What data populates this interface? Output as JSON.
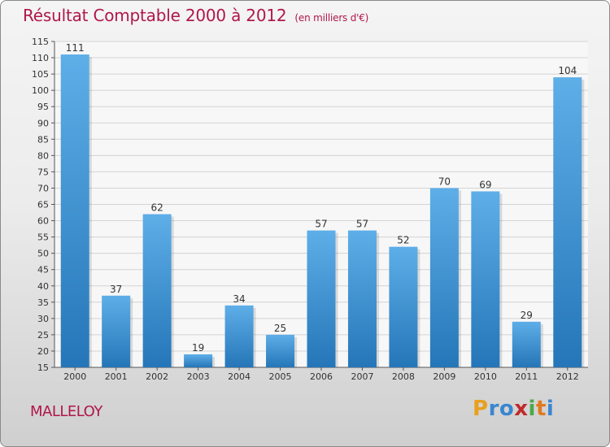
{
  "header": {
    "title": "Résultat Comptable 2000 à 2012",
    "subtitle": "(en milliers d'€)"
  },
  "commune": "MALLELOY",
  "brand": "Proxiti",
  "colors": {
    "title": "#b0174a",
    "bar_top": "#5eaee8",
    "bar_bottom": "#2576b8"
  },
  "chart_data": {
    "type": "bar",
    "title": "Résultat Comptable 2000 à 2012",
    "subtitle": "(en milliers d'€)",
    "categories": [
      "2000",
      "2001",
      "2002",
      "2003",
      "2004",
      "2005",
      "2006",
      "2007",
      "2008",
      "2009",
      "2010",
      "2011",
      "2012"
    ],
    "values": [
      111,
      37,
      62,
      19,
      34,
      25,
      57,
      57,
      52,
      70,
      69,
      29,
      104
    ],
    "ylim": [
      15,
      115
    ],
    "yticks": [
      15,
      20,
      25,
      30,
      35,
      40,
      45,
      50,
      55,
      60,
      65,
      70,
      75,
      80,
      85,
      90,
      95,
      100,
      105,
      110,
      115
    ],
    "grid": true,
    "legend": "none"
  }
}
